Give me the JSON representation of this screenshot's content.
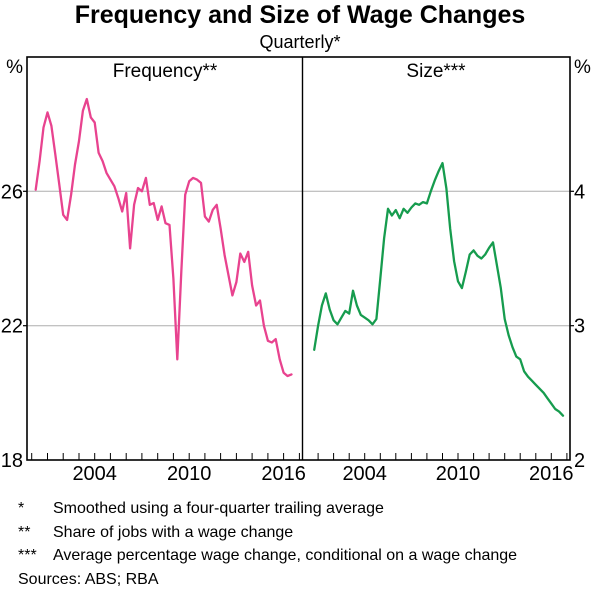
{
  "chart_data": {
    "type": "line",
    "title": "Frequency and Size of Wage Changes",
    "subtitle": "Quarterly*",
    "legend": "none",
    "grid": "horizontal gridlines at labeled y values only",
    "panels": [
      {
        "id": "frequency",
        "label": "Frequency**",
        "unit": "%",
        "side": "left",
        "x_range": [
          1999.7,
          2017.2
        ],
        "y_range": [
          18,
          30
        ],
        "y_ticks_labeled": [
          18,
          22,
          26
        ],
        "y_gridlines": [
          22,
          26
        ],
        "x_tick_interval_years": 1,
        "x_tick_labels": [
          2004,
          2010,
          2016
        ],
        "series": {
          "name": "Frequency of wage changes",
          "color_key": "frequency",
          "points": [
            [
              2000.25,
              26.05
            ],
            [
              2000.5,
              26.9
            ],
            [
              2000.75,
              27.9
            ],
            [
              2001,
              28.35
            ],
            [
              2001.25,
              27.95
            ],
            [
              2001.5,
              27.1
            ],
            [
              2001.75,
              26.2
            ],
            [
              2002,
              25.3
            ],
            [
              2002.25,
              25.15
            ],
            [
              2002.5,
              25.9
            ],
            [
              2002.75,
              26.8
            ],
            [
              2003,
              27.5
            ],
            [
              2003.25,
              28.4
            ],
            [
              2003.5,
              28.75
            ],
            [
              2003.75,
              28.2
            ],
            [
              2004,
              28.05
            ],
            [
              2004.25,
              27.15
            ],
            [
              2004.5,
              26.9
            ],
            [
              2004.75,
              26.55
            ],
            [
              2005,
              26.35
            ],
            [
              2005.25,
              26.15
            ],
            [
              2005.5,
              25.8
            ],
            [
              2005.75,
              25.4
            ],
            [
              2006,
              25.95
            ],
            [
              2006.25,
              24.3
            ],
            [
              2006.5,
              25.6
            ],
            [
              2006.75,
              26.1
            ],
            [
              2007,
              26.0
            ],
            [
              2007.25,
              26.4
            ],
            [
              2007.5,
              25.6
            ],
            [
              2007.75,
              25.65
            ],
            [
              2008,
              25.15
            ],
            [
              2008.25,
              25.55
            ],
            [
              2008.5,
              25.05
            ],
            [
              2008.75,
              25.0
            ],
            [
              2009,
              23.4
            ],
            [
              2009.25,
              21.0
            ],
            [
              2009.5,
              23.6
            ],
            [
              2009.75,
              25.9
            ],
            [
              2010,
              26.3
            ],
            [
              2010.25,
              26.4
            ],
            [
              2010.5,
              26.35
            ],
            [
              2010.75,
              26.25
            ],
            [
              2011,
              25.25
            ],
            [
              2011.25,
              25.1
            ],
            [
              2011.5,
              25.45
            ],
            [
              2011.75,
              25.6
            ],
            [
              2012,
              24.9
            ],
            [
              2012.25,
              24.1
            ],
            [
              2012.5,
              23.5
            ],
            [
              2012.75,
              22.9
            ],
            [
              2013,
              23.3
            ],
            [
              2013.25,
              24.15
            ],
            [
              2013.5,
              23.9
            ],
            [
              2013.75,
              24.2
            ],
            [
              2014,
              23.2
            ],
            [
              2014.25,
              22.6
            ],
            [
              2014.5,
              22.75
            ],
            [
              2014.75,
              22.0
            ],
            [
              2015,
              21.55
            ],
            [
              2015.25,
              21.5
            ],
            [
              2015.5,
              21.6
            ],
            [
              2015.75,
              21.0
            ],
            [
              2016,
              20.6
            ],
            [
              2016.25,
              20.5
            ],
            [
              2016.5,
              20.55
            ]
          ]
        }
      },
      {
        "id": "size",
        "label": "Size***",
        "unit": "%",
        "side": "right",
        "x_range": [
          2000.0,
          2017.2
        ],
        "y_range": [
          2,
          5
        ],
        "y_ticks_labeled": [
          2,
          3,
          4
        ],
        "y_gridlines": [
          3,
          4
        ],
        "x_tick_interval_years": 1,
        "x_tick_labels": [
          2004,
          2010,
          2016
        ],
        "series": {
          "name": "Average size of wage changes",
          "color_key": "size",
          "points": [
            [
              2000.75,
              2.82
            ],
            [
              2001,
              3.0
            ],
            [
              2001.25,
              3.15
            ],
            [
              2001.5,
              3.24
            ],
            [
              2001.75,
              3.12
            ],
            [
              2002,
              3.04
            ],
            [
              2002.25,
              3.01
            ],
            [
              2002.5,
              3.06
            ],
            [
              2002.75,
              3.11
            ],
            [
              2003,
              3.09
            ],
            [
              2003.25,
              3.26
            ],
            [
              2003.5,
              3.15
            ],
            [
              2003.75,
              3.08
            ],
            [
              2004,
              3.06
            ],
            [
              2004.25,
              3.04
            ],
            [
              2004.5,
              3.01
            ],
            [
              2004.75,
              3.05
            ],
            [
              2005,
              3.35
            ],
            [
              2005.25,
              3.65
            ],
            [
              2005.5,
              3.87
            ],
            [
              2005.75,
              3.82
            ],
            [
              2006,
              3.86
            ],
            [
              2006.25,
              3.8
            ],
            [
              2006.5,
              3.87
            ],
            [
              2006.75,
              3.84
            ],
            [
              2007,
              3.88
            ],
            [
              2007.25,
              3.91
            ],
            [
              2007.5,
              3.9
            ],
            [
              2007.75,
              3.92
            ],
            [
              2008,
              3.91
            ],
            [
              2008.25,
              4.0
            ],
            [
              2008.5,
              4.08
            ],
            [
              2008.75,
              4.15
            ],
            [
              2009,
              4.21
            ],
            [
              2009.25,
              4.02
            ],
            [
              2009.5,
              3.72
            ],
            [
              2009.75,
              3.48
            ],
            [
              2010,
              3.33
            ],
            [
              2010.25,
              3.28
            ],
            [
              2010.5,
              3.4
            ],
            [
              2010.75,
              3.53
            ],
            [
              2011,
              3.56
            ],
            [
              2011.25,
              3.52
            ],
            [
              2011.5,
              3.5
            ],
            [
              2011.75,
              3.53
            ],
            [
              2012,
              3.58
            ],
            [
              2012.25,
              3.62
            ],
            [
              2012.5,
              3.45
            ],
            [
              2012.75,
              3.28
            ],
            [
              2013,
              3.05
            ],
            [
              2013.25,
              2.93
            ],
            [
              2013.5,
              2.84
            ],
            [
              2013.75,
              2.77
            ],
            [
              2014,
              2.75
            ],
            [
              2014.25,
              2.66
            ],
            [
              2014.5,
              2.62
            ],
            [
              2014.75,
              2.59
            ],
            [
              2015,
              2.56
            ],
            [
              2015.25,
              2.53
            ],
            [
              2015.5,
              2.5
            ],
            [
              2015.75,
              2.46
            ],
            [
              2016,
              2.42
            ],
            [
              2016.25,
              2.38
            ],
            [
              2016.5,
              2.36
            ],
            [
              2016.75,
              2.33
            ]
          ]
        }
      }
    ]
  },
  "footnotes": [
    {
      "symbol": "*",
      "text": "Smoothed using a four-quarter trailing average"
    },
    {
      "symbol": "**",
      "text": "Share of jobs with a wage change"
    },
    {
      "symbol": "***",
      "text": "Average percentage wage change, conditional on a wage change"
    }
  ],
  "sources": "Sources: ABS; RBA",
  "colors": {
    "frequency": "#E8438F",
    "size": "#169C4E",
    "grid": "#ADADAD",
    "frame": "#000000"
  }
}
